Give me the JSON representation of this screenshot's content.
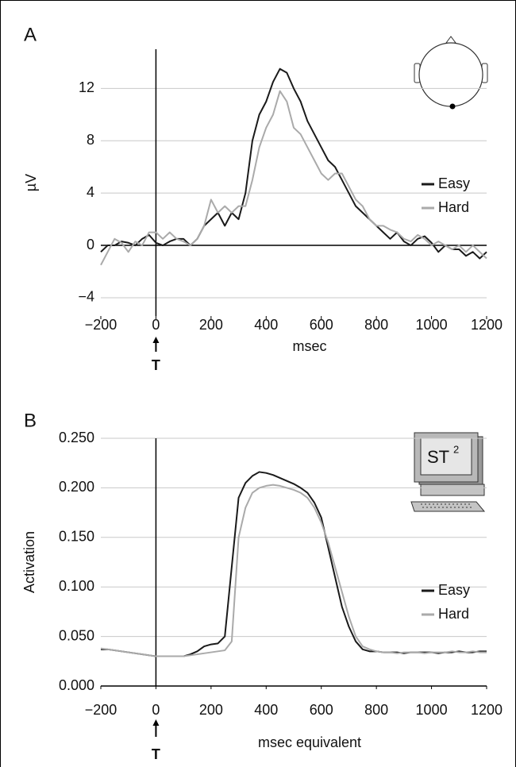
{
  "chart_data": [
    {
      "type": "line",
      "panel": "A",
      "y_label": "µV",
      "x_label": "msec",
      "marker": "T",
      "xlim": [
        -200,
        1200
      ],
      "xticks": [
        {
          "value": -200,
          "label": "−200"
        },
        0,
        200,
        400,
        600,
        800,
        1000,
        1200
      ],
      "ylim": [
        -5.4,
        15
      ],
      "yticks": [
        {
          "value": -4,
          "label": "−4"
        },
        0,
        4,
        8,
        12
      ],
      "grid": true,
      "legend": "center right",
      "x": [
        -200,
        -175,
        -150,
        -125,
        -100,
        -75,
        -50,
        -25,
        0,
        25,
        50,
        75,
        100,
        125,
        150,
        175,
        200,
        225,
        250,
        275,
        300,
        325,
        350,
        375,
        400,
        425,
        450,
        475,
        500,
        525,
        550,
        575,
        600,
        625,
        650,
        675,
        700,
        725,
        750,
        775,
        800,
        825,
        850,
        875,
        900,
        925,
        950,
        975,
        1000,
        1025,
        1050,
        1075,
        1100,
        1125,
        1150,
        1175,
        1200
      ],
      "series": [
        {
          "name": "Easy",
          "color": "#1a1a1a",
          "values": [
            -0.5,
            0,
            0,
            0.3,
            0.2,
            0,
            0.5,
            0.8,
            0.2,
            0,
            0.3,
            0.5,
            0.5,
            0,
            0.5,
            1.5,
            2,
            2.5,
            1.5,
            2.5,
            2,
            4,
            8,
            10,
            11,
            12.5,
            13.5,
            13.2,
            12,
            11,
            9.5,
            8.5,
            7.5,
            6.5,
            6,
            5,
            4,
            3,
            2.5,
            2,
            1.5,
            1,
            0.5,
            1,
            0.3,
            0,
            0.5,
            0.7,
            0.2,
            -0.5,
            0,
            -0.3,
            -0.3,
            -0.8,
            -0.5,
            -1,
            -0.5
          ]
        },
        {
          "name": "Hard",
          "color": "#aaaaaa",
          "values": [
            -1.5,
            -0.5,
            0.5,
            0.2,
            -0.5,
            0.3,
            0,
            1,
            1,
            0.5,
            1,
            0.5,
            0.3,
            0,
            0.5,
            1.5,
            3.5,
            2.5,
            3,
            2.5,
            3,
            3,
            5,
            7.5,
            9,
            10,
            11.8,
            11,
            9,
            8.5,
            7.5,
            6.5,
            5.5,
            5,
            5.5,
            5.5,
            4.5,
            3.5,
            3,
            2,
            1.5,
            1.5,
            1.2,
            1,
            0.5,
            0.3,
            0.8,
            0.5,
            0,
            0.3,
            0,
            -0.3,
            0,
            -0.5,
            0,
            -0.5,
            -1
          ]
        }
      ]
    },
    {
      "type": "line",
      "panel": "B",
      "y_label": "Activation",
      "x_label": "msec equivalent",
      "marker": "T",
      "icon_text": "ST",
      "icon_superscript": "2",
      "xlim": [
        -200,
        1200
      ],
      "xticks": [
        {
          "value": -200,
          "label": "−200"
        },
        0,
        200,
        400,
        600,
        800,
        1000,
        1200
      ],
      "ylim": [
        0,
        0.25
      ],
      "yticks": [
        {
          "value": 0,
          "label": "0.000"
        },
        {
          "value": 0.05,
          "label": "0.050"
        },
        {
          "value": 0.1,
          "label": "0.100"
        },
        {
          "value": 0.15,
          "label": "0.150"
        },
        {
          "value": 0.2,
          "label": "0.200"
        },
        {
          "value": 0.25,
          "label": "0.250"
        }
      ],
      "grid": true,
      "legend": "center right",
      "x": [
        -200,
        -175,
        -150,
        -125,
        -100,
        -75,
        -50,
        -25,
        0,
        25,
        50,
        75,
        100,
        125,
        150,
        175,
        200,
        225,
        250,
        275,
        300,
        325,
        350,
        375,
        400,
        425,
        450,
        475,
        500,
        525,
        550,
        575,
        600,
        625,
        650,
        675,
        700,
        725,
        750,
        775,
        800,
        825,
        850,
        875,
        900,
        925,
        950,
        975,
        1000,
        1025,
        1050,
        1075,
        1100,
        1125,
        1150,
        1175,
        1200
      ],
      "series": [
        {
          "name": "Easy",
          "color": "#1a1a1a",
          "values": [
            0.037,
            0.037,
            0.036,
            0.035,
            0.034,
            0.033,
            0.032,
            0.031,
            0.03,
            0.03,
            0.03,
            0.03,
            0.03,
            0.032,
            0.035,
            0.04,
            0.042,
            0.043,
            0.05,
            0.12,
            0.19,
            0.205,
            0.212,
            0.216,
            0.215,
            0.213,
            0.21,
            0.207,
            0.204,
            0.2,
            0.195,
            0.185,
            0.17,
            0.14,
            0.11,
            0.08,
            0.06,
            0.045,
            0.037,
            0.035,
            0.035,
            0.034,
            0.034,
            0.034,
            0.033,
            0.034,
            0.034,
            0.034,
            0.034,
            0.033,
            0.034,
            0.034,
            0.035,
            0.034,
            0.034,
            0.035,
            0.035
          ]
        },
        {
          "name": "Hard",
          "color": "#aaaaaa",
          "values": [
            0.038,
            0.037,
            0.036,
            0.035,
            0.034,
            0.033,
            0.032,
            0.031,
            0.03,
            0.03,
            0.03,
            0.03,
            0.03,
            0.031,
            0.032,
            0.033,
            0.034,
            0.035,
            0.036,
            0.045,
            0.15,
            0.18,
            0.195,
            0.2,
            0.202,
            0.203,
            0.202,
            0.2,
            0.198,
            0.195,
            0.19,
            0.18,
            0.165,
            0.145,
            0.12,
            0.095,
            0.07,
            0.05,
            0.04,
            0.037,
            0.035,
            0.034,
            0.034,
            0.033,
            0.034,
            0.034,
            0.034,
            0.033,
            0.034,
            0.034,
            0.034,
            0.035,
            0.034,
            0.034,
            0.035,
            0.034,
            0.034
          ]
        }
      ]
    }
  ]
}
